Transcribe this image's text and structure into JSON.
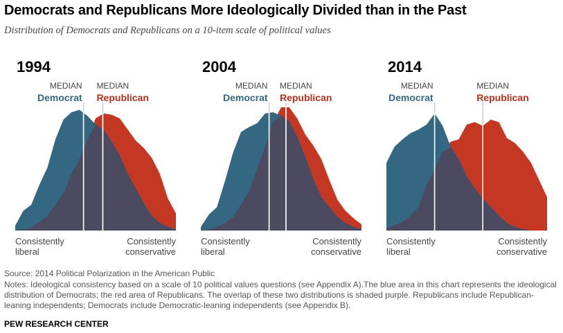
{
  "title": "Democrats and Republicans More Ideologically Divided than in the Past",
  "subtitle": "Distribution of Democrats and Republicans on a 10-item scale of political values",
  "source": "Source: 2014 Political Polarization in the American Public",
  "notes": "Notes: Ideological consistency based on a scale of 10 political values questions (see Appendix A).The blue area in this chart represents the ideological distribution of Democrats; the red area of Republicans. The overlap of these two distributions is shaded purple. Republicans include Republican-leaning independents; Democrats include Democratic-leaning independents (see Appendix B).",
  "brand": "PEW RESEARCH CENTER",
  "colors": {
    "democrat": "#346882",
    "republican": "#c33723",
    "overlap": "#4b4a60",
    "democrat_label": "#346882",
    "republican_label": "#b4321e",
    "median_line": "#ffffff"
  },
  "chart_data": [
    {
      "type": "area",
      "title": "1994",
      "median_word": "MEDIAN",
      "series_names": [
        "Democrat",
        "Republican"
      ],
      "xlabel_left": [
        "Consistently",
        "liberal"
      ],
      "xlabel_right": [
        "Consistently",
        "conservative"
      ],
      "x": [
        -10,
        -9,
        -8,
        -7,
        -6,
        -5,
        -4,
        -3,
        -2,
        -1,
        0,
        1,
        2,
        3,
        4,
        5,
        6,
        7,
        8,
        9,
        10
      ],
      "series": [
        {
          "name": "Democrat",
          "values": [
            4,
            16,
            21,
            37,
            51,
            74,
            90,
            96,
            98,
            93,
            86,
            82,
            72,
            61,
            46,
            34,
            22,
            12,
            6,
            3,
            1
          ]
        },
        {
          "name": "Republican",
          "values": [
            0,
            1,
            2,
            7,
            12,
            21,
            30,
            46,
            58,
            74,
            91,
            95,
            94,
            91,
            82,
            73,
            67,
            59,
            46,
            26,
            14
          ]
        }
      ],
      "medians": {
        "Democrat": -1.5,
        "Republican": 0.9
      }
    },
    {
      "type": "area",
      "title": "2004",
      "median_word": "MEDIAN",
      "series_names": [
        "Democrat",
        "Republican"
      ],
      "xlabel_left": [
        "Consistently",
        "liberal"
      ],
      "xlabel_right": [
        "Consistently",
        "conservative"
      ],
      "x": [
        -10,
        -9,
        -8,
        -7,
        -6,
        -5,
        -4,
        -3,
        -2,
        -1,
        0,
        1,
        2,
        3,
        4,
        5,
        6,
        7,
        8,
        9,
        10
      ],
      "series": [
        {
          "name": "Democrat",
          "values": [
            3,
            13,
            19,
            40,
            63,
            80,
            84,
            87,
            95,
            96,
            93,
            89,
            76,
            60,
            42,
            27,
            19,
            11,
            6,
            3,
            1
          ]
        },
        {
          "name": "Republican",
          "values": [
            0,
            1,
            3,
            6,
            11,
            21,
            32,
            50,
            68,
            88,
            100,
            100,
            91,
            78,
            69,
            58,
            41,
            25,
            16,
            10,
            5
          ]
        }
      ],
      "medians": {
        "Democrat": -1.5,
        "Republican": 0.6
      }
    },
    {
      "type": "area",
      "title": "2014",
      "median_word": "MEDIAN",
      "series_names": [
        "Democrat",
        "Republican"
      ],
      "xlabel_left": [
        "Consistently",
        "liberal"
      ],
      "xlabel_right": [
        "Consistently",
        "conservative"
      ],
      "x": [
        -10,
        -9,
        -8,
        -7,
        -6,
        -5,
        -4,
        -3,
        -2,
        -1,
        0,
        1,
        2,
        3,
        4,
        5,
        6,
        7,
        8,
        9,
        10
      ],
      "series": [
        {
          "name": "Democrat",
          "values": [
            55,
            68,
            74,
            79,
            82,
            86,
            95,
            85,
            68,
            58,
            44,
            34,
            26,
            19,
            12,
            6,
            3,
            1,
            0,
            0,
            0
          ]
        },
        {
          "name": "Republican",
          "values": [
            2,
            4,
            7,
            12,
            19,
            37,
            50,
            64,
            72,
            74,
            86,
            88,
            85,
            90,
            88,
            75,
            71,
            64,
            55,
            41,
            27
          ]
        }
      ],
      "medians": {
        "Democrat": -4.0,
        "Republican": 2.0
      }
    }
  ]
}
